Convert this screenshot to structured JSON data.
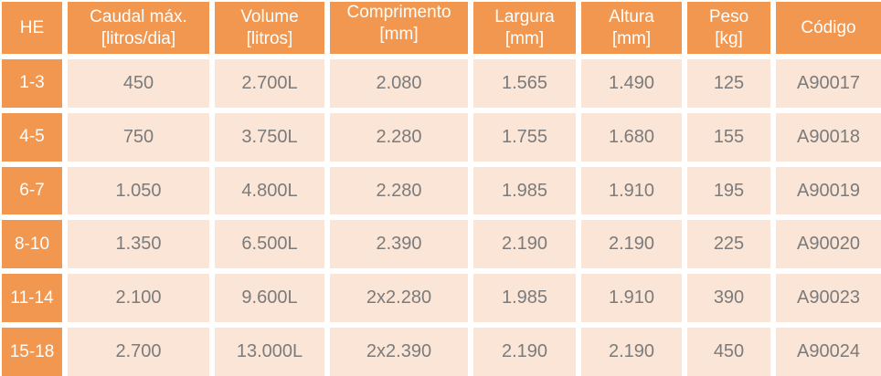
{
  "table": {
    "columns": [
      {
        "key": "he",
        "line1": "HE",
        "line2": ""
      },
      {
        "key": "caudal_max",
        "line1": "Caudal máx.",
        "line2": "[litros/dia]"
      },
      {
        "key": "volume",
        "line1": "Volume",
        "line2": "[litros]"
      },
      {
        "key": "comprimento",
        "line1": "Comprimento",
        "line2": "[mm]"
      },
      {
        "key": "largura",
        "line1": "Largura",
        "line2": "[mm]"
      },
      {
        "key": "altura",
        "line1": "Altura",
        "line2": "[mm]"
      },
      {
        "key": "peso",
        "line1": "Peso",
        "line2": "[kg]"
      },
      {
        "key": "codigo",
        "line1": "Código",
        "line2": ""
      }
    ],
    "rows": [
      {
        "he": "1-3",
        "caudal_max": "450",
        "volume": "2.700L",
        "comprimento": "2.080",
        "largura": "1.565",
        "altura": "1.490",
        "peso": "125",
        "codigo": "A90017"
      },
      {
        "he": "4-5",
        "caudal_max": "750",
        "volume": "3.750L",
        "comprimento": "2.280",
        "largura": "1.755",
        "altura": "1.680",
        "peso": "155",
        "codigo": "A90018"
      },
      {
        "he": "6-7",
        "caudal_max": "1.050",
        "volume": "4.800L",
        "comprimento": "2.280",
        "largura": "1.985",
        "altura": "1.910",
        "peso": "195",
        "codigo": "A90019"
      },
      {
        "he": "8-10",
        "caudal_max": "1.350",
        "volume": "6.500L",
        "comprimento": "2.390",
        "largura": "2.190",
        "altura": "2.190",
        "peso": "225",
        "codigo": "A90020"
      },
      {
        "he": "11-14",
        "caudal_max": "2.100",
        "volume": "9.600L",
        "comprimento": "2x2.280",
        "largura": "1.985",
        "altura": "1.910",
        "peso": "390",
        "codigo": "A90023"
      },
      {
        "he": "15-18",
        "caudal_max": "2.700",
        "volume": "13.000L",
        "comprimento": "2x2.390",
        "largura": "2.190",
        "altura": "2.190",
        "peso": "450",
        "codigo": "A90024"
      }
    ],
    "colors": {
      "header_bg": "#f2974f",
      "header_text": "#ffffff",
      "cell_bg": "#fbe5d6",
      "cell_text": "#7b7b7b",
      "gap": "#ffffff"
    }
  }
}
